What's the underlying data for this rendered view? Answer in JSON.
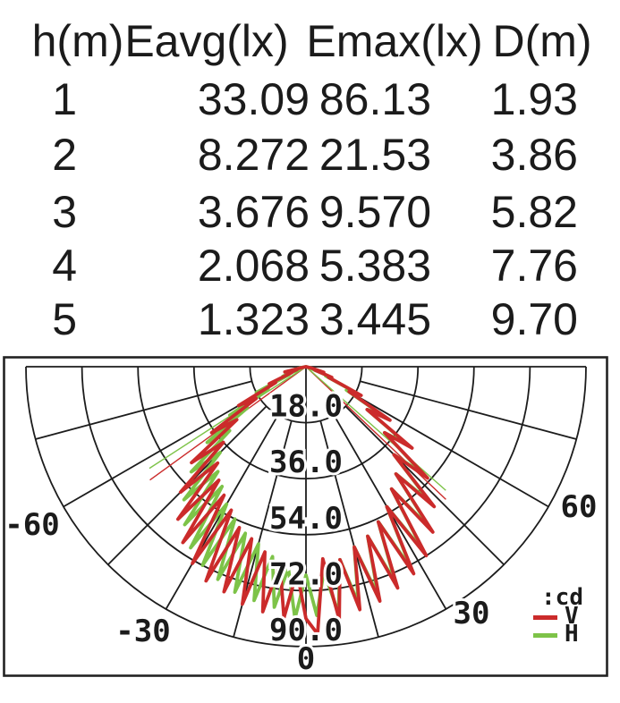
{
  "table": {
    "headers": [
      "h(m)",
      "Eavg(lx)",
      "Emax(lx)",
      "D(m)"
    ],
    "rows": [
      [
        "1",
        "33.09",
        "86.13",
        "1.93"
      ],
      [
        "2",
        "8.272",
        "21.53",
        "3.86"
      ],
      [
        "3",
        "3.676",
        "9.570",
        "5.82"
      ],
      [
        "4",
        "2.068",
        "5.383",
        "7.76"
      ],
      [
        "5",
        "1.323",
        "3.445",
        "9.70"
      ]
    ]
  },
  "chart_data": {
    "type": "line",
    "subtype": "polar-intensity-distribution",
    "units": "cd",
    "rmax": 90,
    "ring_step": 18,
    "radial_tick_labels": [
      "18.0",
      "36.0",
      "54.0",
      "72.0",
      "90.0"
    ],
    "spoke_step_deg": 15,
    "angle_range_deg": [
      -90,
      90
    ],
    "angle_labels": [
      "-60",
      "-30",
      "0",
      "30",
      "60"
    ],
    "grid_color": "#1c1c1c",
    "legend": {
      "unit_label": ":cd",
      "entries": [
        {
          "label": "V",
          "color": "#cb2b2b"
        },
        {
          "label": "H",
          "color": "#7dc348"
        }
      ]
    },
    "series": [
      {
        "name": "V",
        "color": "#cb2b2b",
        "points": [
          [
            -82,
            0
          ],
          [
            -79,
            1
          ],
          [
            -76,
            7
          ],
          [
            -72.5,
            3
          ],
          [
            -70,
            5
          ],
          [
            -67.5,
            5
          ],
          [
            -65,
            13
          ],
          [
            -62.5,
            11
          ],
          [
            -60,
            25
          ],
          [
            -57.5,
            19
          ],
          [
            -55,
            37
          ],
          [
            -52.5,
            28
          ],
          [
            -50,
            48
          ],
          [
            -47.5,
            36
          ],
          [
            -45,
            57
          ],
          [
            -42.5,
            42
          ],
          [
            -40,
            64
          ],
          [
            -37.5,
            46
          ],
          [
            -35,
            69
          ],
          [
            -32.5,
            49
          ],
          [
            -30,
            73
          ],
          [
            -27.5,
            52
          ],
          [
            -25,
            76
          ],
          [
            -22.5,
            56
          ],
          [
            -20,
            77
          ],
          [
            -17.5,
            58
          ],
          [
            -15,
            79
          ],
          [
            -12.5,
            61
          ],
          [
            -10,
            80
          ],
          [
            -7.5,
            64
          ],
          [
            -5,
            81
          ],
          [
            -2.5,
            66
          ],
          [
            0,
            81
          ],
          [
            2.5,
            86
          ],
          [
            5,
            62
          ],
          [
            7.5,
            82
          ],
          [
            10,
            63
          ],
          [
            12.5,
            80
          ],
          [
            15,
            60
          ],
          [
            17.5,
            79
          ],
          [
            20,
            58
          ],
          [
            22.5,
            77
          ],
          [
            25,
            55
          ],
          [
            27.5,
            75
          ],
          [
            30,
            52
          ],
          [
            32.5,
            72
          ],
          [
            35,
            48
          ],
          [
            37.5,
            67
          ],
          [
            40,
            45
          ],
          [
            42.5,
            61
          ],
          [
            45,
            40
          ],
          [
            47.5,
            53
          ],
          [
            50,
            33
          ],
          [
            52.5,
            43
          ],
          [
            55,
            24
          ],
          [
            57.5,
            32
          ],
          [
            60,
            16
          ],
          [
            62.5,
            20
          ],
          [
            65,
            8
          ],
          [
            67.5,
            9
          ],
          [
            70,
            3
          ],
          [
            72.5,
            6
          ],
          [
            76,
            2
          ],
          [
            82,
            0
          ]
        ]
      },
      {
        "name": "H",
        "color": "#7dc348",
        "points": [
          [
            -82,
            0
          ],
          [
            -78,
            2
          ],
          [
            -75,
            6
          ],
          [
            -72,
            2
          ],
          [
            -70,
            2
          ],
          [
            -67.5,
            8
          ],
          [
            -65,
            6
          ],
          [
            -62.5,
            18
          ],
          [
            -60,
            14
          ],
          [
            -57.5,
            29
          ],
          [
            -55,
            23
          ],
          [
            -52.5,
            40
          ],
          [
            -50,
            32
          ],
          [
            -47.5,
            50
          ],
          [
            -45,
            39
          ],
          [
            -42.5,
            58
          ],
          [
            -40,
            44
          ],
          [
            -37.5,
            64
          ],
          [
            -35,
            47
          ],
          [
            -32.5,
            69
          ],
          [
            -30,
            51
          ],
          [
            -27.5,
            72
          ],
          [
            -25,
            54
          ],
          [
            -22.5,
            74
          ],
          [
            -20,
            57
          ],
          [
            -17.5,
            76
          ],
          [
            -15,
            59
          ],
          [
            -12.5,
            77
          ],
          [
            -10,
            62
          ],
          [
            -7.5,
            78
          ],
          [
            -5,
            65
          ],
          [
            -2.5,
            81
          ],
          [
            0,
            67
          ],
          [
            2.5,
            80
          ],
          [
            5,
            66
          ],
          [
            7.5,
            80
          ],
          [
            10,
            63
          ],
          [
            12.5,
            78
          ],
          [
            15,
            60
          ],
          [
            17.5,
            77
          ],
          [
            20,
            58
          ],
          [
            22.5,
            75
          ],
          [
            25,
            55
          ],
          [
            27.5,
            73
          ],
          [
            30,
            52
          ],
          [
            32.5,
            70
          ],
          [
            35,
            48
          ],
          [
            37.5,
            65
          ],
          [
            40,
            45
          ],
          [
            42.5,
            59
          ],
          [
            45,
            40
          ],
          [
            47.5,
            51
          ],
          [
            50,
            33
          ],
          [
            52.5,
            41
          ],
          [
            55,
            24
          ],
          [
            57.5,
            30
          ],
          [
            60,
            15
          ],
          [
            62.5,
            19
          ],
          [
            65,
            7
          ],
          [
            67.5,
            8
          ],
          [
            70,
            2
          ],
          [
            72,
            5
          ],
          [
            75,
            2
          ],
          [
            82,
            0
          ]
        ]
      }
    ],
    "beam_rays": [
      {
        "series": "V",
        "angle": -54,
        "r": 62,
        "color": "#cb2b2b"
      },
      {
        "series": "V",
        "angle": 46.5,
        "r": 62,
        "color": "#cb2b2b"
      },
      {
        "series": "H",
        "angle": -57,
        "r": 60,
        "color": "#7dc348"
      },
      {
        "series": "H",
        "angle": 48.5,
        "r": 60,
        "color": "#7dc348"
      }
    ]
  }
}
